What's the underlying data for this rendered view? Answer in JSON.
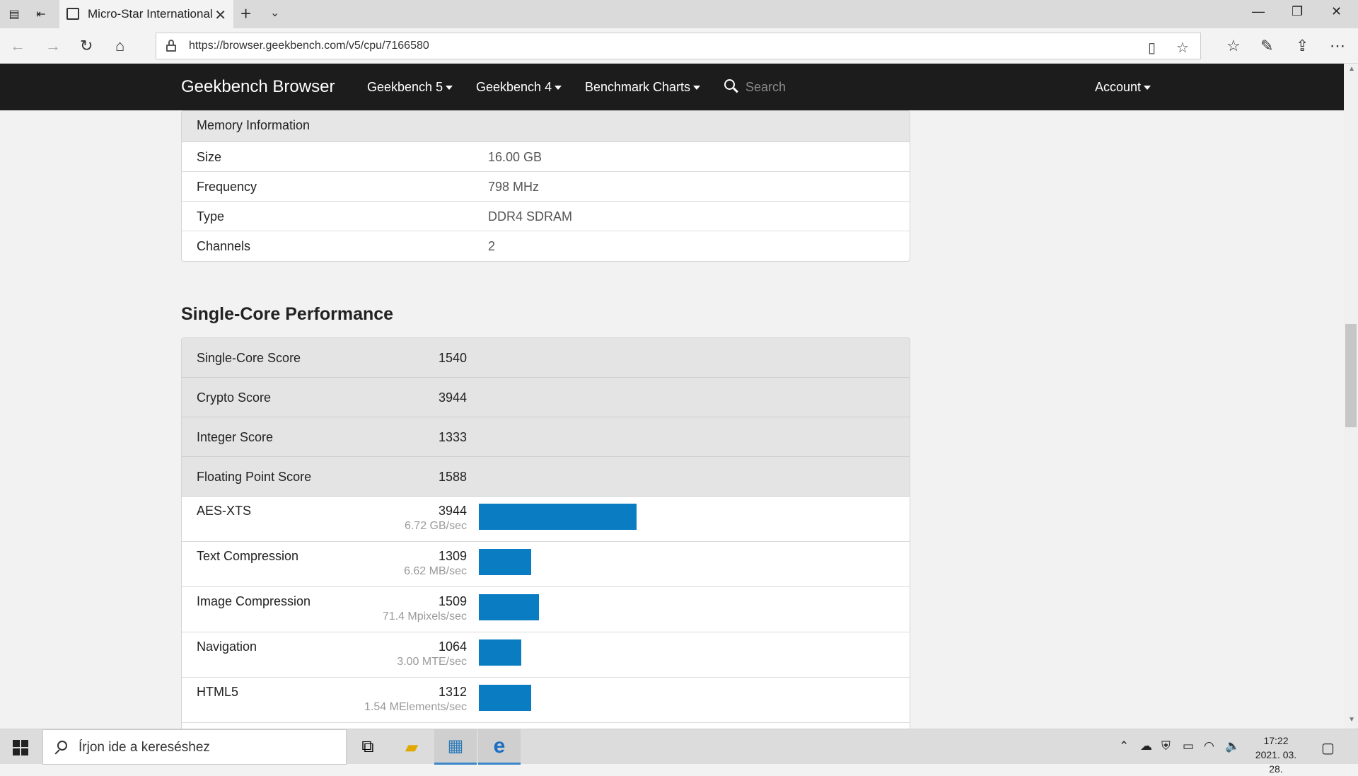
{
  "browser": {
    "tab_title": "Micro-Star International",
    "url": "https://browser.geekbench.com/v5/cpu/7166580"
  },
  "navbar": {
    "brand": "Geekbench Browser",
    "menu": [
      "Geekbench 5",
      "Geekbench 4",
      "Benchmark Charts"
    ],
    "search_placeholder": "Search",
    "account": "Account"
  },
  "memory": {
    "heading": "Memory Information",
    "rows": [
      {
        "label": "Size",
        "value": "16.00 GB"
      },
      {
        "label": "Frequency",
        "value": "798 MHz"
      },
      {
        "label": "Type",
        "value": "DDR4 SDRAM"
      },
      {
        "label": "Channels",
        "value": "2"
      }
    ]
  },
  "single_core": {
    "title": "Single-Core Performance",
    "summary": [
      {
        "label": "Single-Core Score",
        "value": "1540"
      },
      {
        "label": "Crypto Score",
        "value": "3944"
      },
      {
        "label": "Integer Score",
        "value": "1333"
      },
      {
        "label": "Floating Point Score",
        "value": "1588"
      }
    ],
    "benchmarks": [
      {
        "label": "AES-XTS",
        "score": 3944,
        "score_text": "3944",
        "rate": "6.72 GB/sec"
      },
      {
        "label": "Text Compression",
        "score": 1309,
        "score_text": "1309",
        "rate": "6.62 MB/sec"
      },
      {
        "label": "Image Compression",
        "score": 1509,
        "score_text": "1509",
        "rate": "71.4 Mpixels/sec"
      },
      {
        "label": "Navigation",
        "score": 1064,
        "score_text": "1064",
        "rate": "3.00 MTE/sec"
      },
      {
        "label": "HTML5",
        "score": 1312,
        "score_text": "1312",
        "rate": "1.54 MElements/sec"
      }
    ]
  },
  "taskbar": {
    "search_text": "Írjon ide a kereséshez",
    "time": "17:22",
    "date": "2021. 03. 28."
  },
  "colors": {
    "navbar_bg": "#1c1c1c",
    "bar_blue": "#0a7dc2"
  }
}
